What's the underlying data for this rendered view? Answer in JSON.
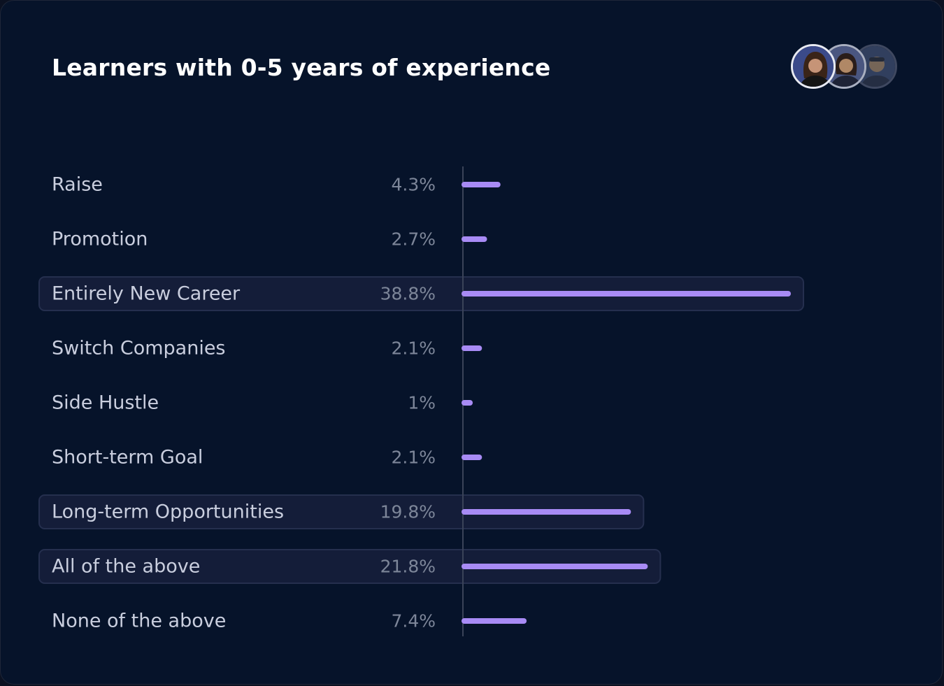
{
  "chart_data": {
    "type": "bar",
    "orientation": "horizontal",
    "title": "Learners with 0-5 years of experience",
    "categories": [
      "Raise",
      "Promotion",
      "Entirely New Career",
      "Switch Companies",
      "Side Hustle",
      "Short-term Goal",
      "Long-term Opportunities",
      "All of the above",
      "None of the above"
    ],
    "values": [
      4.3,
      2.7,
      38.8,
      2.1,
      1,
      2.1,
      19.8,
      21.8,
      7.4
    ],
    "value_labels": [
      "4.3%",
      "2.7%",
      "38.8%",
      "2.1%",
      "1%",
      "2.1%",
      "19.8%",
      "21.8%",
      "7.4%"
    ],
    "highlighted": [
      false,
      false,
      true,
      false,
      false,
      false,
      true,
      true,
      false
    ],
    "xlim": [
      0,
      40
    ],
    "unit": "%",
    "xlabel": "",
    "ylabel": "",
    "grid": false
  },
  "colors": {
    "background": "#06132a",
    "bar": "#a88bf5",
    "highlight_fill": "#141d39",
    "highlight_border": "#252f4e",
    "axis": "#3a4358"
  },
  "avatars": {
    "icons": [
      "person-avatar-icon",
      "person-avatar-icon",
      "person-avatar-icon"
    ]
  }
}
